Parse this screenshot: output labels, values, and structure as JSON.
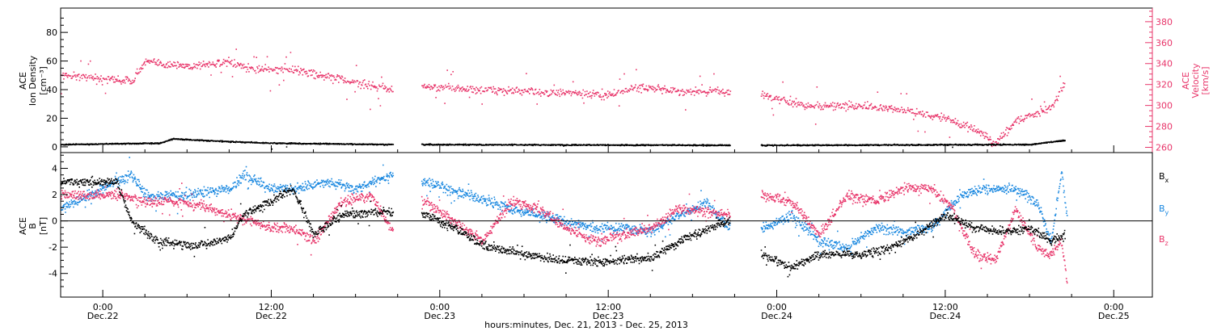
{
  "chart_data": [
    {
      "type": "scatter",
      "panel": "top",
      "ylabel_left": [
        "ACE",
        "Ion Density",
        "[cm⁻³]"
      ],
      "ylabel_right": [
        "ACE",
        "Velocity",
        "[km/s]"
      ],
      "ylim_left": [
        -4,
        97
      ],
      "ylim_right": [
        255,
        393
      ],
      "left_ticks": [
        0,
        20,
        40,
        60,
        80
      ],
      "right_ticks": [
        260,
        280,
        300,
        320,
        340,
        360,
        380
      ],
      "data_gaps": [
        [
          "2013-12-22T20:40",
          "2013-12-22T22:40"
        ],
        [
          "2013-12-23T20:40",
          "2013-12-23T22:50"
        ]
      ],
      "series": [
        {
          "axis": "right",
          "color": "#e8356a",
          "style": "dots",
          "points": [
            [
              "2013-12-21T21:00",
              330
            ],
            [
              "2013-12-22T00:00",
              326
            ],
            [
              "2013-12-22T02:00",
              324
            ],
            [
              "2013-12-22T03:00",
              342
            ],
            [
              "2013-12-22T06:00",
              338
            ],
            [
              "2013-12-22T09:00",
              342
            ],
            [
              "2013-12-22T10:00",
              336
            ],
            [
              "2013-12-22T14:00",
              334
            ],
            [
              "2013-12-22T16:00",
              328
            ],
            [
              "2013-12-22T18:00",
              322
            ],
            [
              "2013-12-22T20:30",
              316
            ],
            [
              "2013-12-22T23:00",
              318
            ],
            [
              "2013-12-23T02:00",
              316
            ],
            [
              "2013-12-23T06:00",
              314
            ],
            [
              "2013-12-23T09:00",
              312
            ],
            [
              "2013-12-23T12:00",
              310
            ],
            [
              "2013-12-23T14:00",
              318
            ],
            [
              "2013-12-23T17:00",
              314
            ],
            [
              "2013-12-23T20:30",
              314
            ],
            [
              "2013-12-23T23:00",
              310
            ],
            [
              "2013-12-24T02:00",
              300
            ],
            [
              "2013-12-24T06:00",
              300
            ],
            [
              "2013-12-24T09:00",
              296
            ],
            [
              "2013-12-24T12:00",
              288
            ],
            [
              "2013-12-24T14:00",
              278
            ],
            [
              "2013-12-24T15:30",
              264
            ],
            [
              "2013-12-24T17:00",
              286
            ],
            [
              "2013-12-24T19:30",
              298
            ],
            [
              "2013-12-24T20:30",
              322
            ]
          ]
        },
        {
          "axis": "left",
          "color": "#000000",
          "style": "dots",
          "points": [
            [
              "2013-12-21T21:00",
              2
            ],
            [
              "2013-12-22T04:00",
              3
            ],
            [
              "2013-12-22T05:00",
              6
            ],
            [
              "2013-12-22T09:00",
              4
            ],
            [
              "2013-12-22T12:00",
              3
            ],
            [
              "2013-12-22T20:30",
              2
            ],
            [
              "2013-12-22T23:00",
              2
            ],
            [
              "2013-12-23T20:30",
              1.5
            ],
            [
              "2013-12-23T23:00",
              1.5
            ],
            [
              "2013-12-24T18:00",
              2
            ],
            [
              "2013-12-24T20:30",
              5
            ]
          ]
        }
      ]
    },
    {
      "type": "scatter",
      "panel": "bottom",
      "ylabel_left": [
        "ACE",
        "B",
        "[nT]"
      ],
      "ylim": [
        -5.8,
        5.2
      ],
      "ticks": [
        -4,
        -2,
        0,
        2,
        4
      ],
      "zero_line": true,
      "legend_position": "right",
      "series": [
        {
          "name": "Bx",
          "color": "#000000",
          "style": "dots",
          "points": [
            [
              "2013-12-21T21:00",
              3
            ],
            [
              "2013-12-22T01:00",
              3
            ],
            [
              "2013-12-22T02:00",
              0
            ],
            [
              "2013-12-22T04:00",
              -1.6
            ],
            [
              "2013-12-22T07:00",
              -1.8
            ],
            [
              "2013-12-22T09:00",
              -1.2
            ],
            [
              "2013-12-22T10:00",
              0.5
            ],
            [
              "2013-12-22T12:00",
              1.5
            ],
            [
              "2013-12-22T13:30",
              2.5
            ],
            [
              "2013-12-22T15:00",
              -1
            ],
            [
              "2013-12-22T17:00",
              0.5
            ],
            [
              "2013-12-22T20:30",
              0.8
            ],
            [
              "2013-12-22T23:00",
              0.5
            ],
            [
              "2013-12-23T01:00",
              -0.5
            ],
            [
              "2013-12-23T03:00",
              -1.8
            ],
            [
              "2013-12-23T06:00",
              -2.5
            ],
            [
              "2013-12-23T09:00",
              -3
            ],
            [
              "2013-12-23T12:00",
              -3
            ],
            [
              "2013-12-23T15:00",
              -2.8
            ],
            [
              "2013-12-23T17:00",
              -1.5
            ],
            [
              "2013-12-23T20:30",
              0
            ],
            [
              "2013-12-23T23:00",
              -2.5
            ],
            [
              "2013-12-24T01:00",
              -3.5
            ],
            [
              "2013-12-24T03:00",
              -2.5
            ],
            [
              "2013-12-24T06:00",
              -2.5
            ],
            [
              "2013-12-24T08:00",
              -2
            ],
            [
              "2013-12-24T10:00",
              -1
            ],
            [
              "2013-12-24T12:00",
              0.5
            ],
            [
              "2013-12-24T14:00",
              -0.5
            ],
            [
              "2013-12-24T16:00",
              -0.8
            ],
            [
              "2013-12-24T18:00",
              -0.5
            ],
            [
              "2013-12-24T19:30",
              -1.5
            ],
            [
              "2013-12-24T20:30",
              -1
            ]
          ]
        },
        {
          "name": "By",
          "color": "#1a88e0",
          "style": "dots",
          "points": [
            [
              "2013-12-21T21:00",
              1
            ],
            [
              "2013-12-22T01:00",
              3
            ],
            [
              "2013-12-22T02:00",
              3.6
            ],
            [
              "2013-12-22T03:00",
              2
            ],
            [
              "2013-12-22T06:00",
              2
            ],
            [
              "2013-12-22T09:00",
              2.5
            ],
            [
              "2013-12-22T10:00",
              3.5
            ],
            [
              "2013-12-22T12:00",
              2.5
            ],
            [
              "2013-12-22T14:00",
              2.5
            ],
            [
              "2013-12-22T16:00",
              3
            ],
            [
              "2013-12-22T18:00",
              2.5
            ],
            [
              "2013-12-22T20:30",
              3.5
            ],
            [
              "2013-12-22T23:00",
              3
            ],
            [
              "2013-12-23T02:00",
              2
            ],
            [
              "2013-12-23T05:00",
              1
            ],
            [
              "2013-12-23T07:00",
              0.5
            ],
            [
              "2013-12-23T09:00",
              0
            ],
            [
              "2013-12-23T11:00",
              -0.5
            ],
            [
              "2013-12-23T13:00",
              -0.5
            ],
            [
              "2013-12-23T15:00",
              -0.8
            ],
            [
              "2013-12-23T17:00",
              0.5
            ],
            [
              "2013-12-23T19:00",
              1.5
            ],
            [
              "2013-12-23T20:30",
              -0.5
            ],
            [
              "2013-12-23T23:00",
              -0.5
            ],
            [
              "2013-12-24T01:00",
              0.5
            ],
            [
              "2013-12-24T03:00",
              -1.5
            ],
            [
              "2013-12-24T05:00",
              -2
            ],
            [
              "2013-12-24T07:00",
              -0.5
            ],
            [
              "2013-12-24T09:00",
              -0.8
            ],
            [
              "2013-12-24T11:00",
              -0.5
            ],
            [
              "2013-12-24T13:00",
              2
            ],
            [
              "2013-12-24T15:00",
              2.5
            ],
            [
              "2013-12-24T17:00",
              2.5
            ],
            [
              "2013-12-24T18:30",
              1.5
            ],
            [
              "2013-12-24T19:30",
              -1.5
            ],
            [
              "2013-12-24T20:15",
              3.8
            ],
            [
              "2013-12-24T20:40",
              0
            ]
          ]
        },
        {
          "name": "Bz",
          "color": "#e8356a",
          "style": "dots",
          "points": [
            [
              "2013-12-21T21:00",
              2
            ],
            [
              "2013-12-22T01:00",
              2
            ],
            [
              "2013-12-22T03:00",
              1.5
            ],
            [
              "2013-12-22T05:00",
              1.5
            ],
            [
              "2013-12-22T07:00",
              1.2
            ],
            [
              "2013-12-22T09:00",
              0.5
            ],
            [
              "2013-12-22T10:30",
              0
            ],
            [
              "2013-12-22T12:00",
              -0.5
            ],
            [
              "2013-12-22T13:30",
              -0.5
            ],
            [
              "2013-12-22T15:00",
              -1.5
            ],
            [
              "2013-12-22T17:00",
              1.5
            ],
            [
              "2013-12-22T19:00",
              2
            ],
            [
              "2013-12-22T20:30",
              -0.5
            ],
            [
              "2013-12-22T23:00",
              1.5
            ],
            [
              "2013-12-23T01:00",
              0
            ],
            [
              "2013-12-23T03:00",
              -1.5
            ],
            [
              "2013-12-23T05:00",
              1.5
            ],
            [
              "2013-12-23T07:00",
              1
            ],
            [
              "2013-12-23T09:00",
              -0.5
            ],
            [
              "2013-12-23T11:00",
              -1.5
            ],
            [
              "2013-12-23T13:00",
              -1
            ],
            [
              "2013-12-23T15:00",
              -0.5
            ],
            [
              "2013-12-23T17:00",
              1
            ],
            [
              "2013-12-23T20:30",
              0.5
            ],
            [
              "2013-12-23T23:00",
              2
            ],
            [
              "2013-12-24T01:00",
              1.5
            ],
            [
              "2013-12-24T03:00",
              -1
            ],
            [
              "2013-12-24T05:00",
              2
            ],
            [
              "2013-12-24T07:00",
              1.5
            ],
            [
              "2013-12-24T09:00",
              2.5
            ],
            [
              "2013-12-24T11:00",
              2.5
            ],
            [
              "2013-12-24T12:30",
              1
            ],
            [
              "2013-12-24T14:00",
              -2.5
            ],
            [
              "2013-12-24T15:30",
              -3
            ],
            [
              "2013-12-24T17:00",
              1
            ],
            [
              "2013-12-24T18:30",
              -2
            ],
            [
              "2013-12-24T19:30",
              -2.5
            ],
            [
              "2013-12-24T20:15",
              -1.5
            ],
            [
              "2013-12-24T20:40",
              -5
            ]
          ]
        }
      ]
    }
  ],
  "x_axis": {
    "range": [
      "2013-12-21T21:00",
      "2013-12-25T02:45"
    ],
    "ticks": [
      {
        "time": "2013-12-22T00:00",
        "label": "0:00",
        "date": "Dec.22"
      },
      {
        "time": "2013-12-22T12:00",
        "label": "12:00",
        "date": "Dec.22"
      },
      {
        "time": "2013-12-23T00:00",
        "label": "0:00",
        "date": "Dec.23"
      },
      {
        "time": "2013-12-23T12:00",
        "label": "12:00",
        "date": "Dec.23"
      },
      {
        "time": "2013-12-24T00:00",
        "label": "0:00",
        "date": "Dec.24"
      },
      {
        "time": "2013-12-24T12:00",
        "label": "12:00",
        "date": "Dec.24"
      },
      {
        "time": "2013-12-25T00:00",
        "label": "0:00",
        "date": "Dec.25"
      }
    ],
    "title": "hours:minutes, Dec. 21, 2013 - Dec. 25, 2013"
  },
  "labels": {
    "top_left": [
      "ACE",
      "Ion Density",
      "[cm⁻³]"
    ],
    "top_right": [
      "ACE",
      "Velocity",
      "[km/s]"
    ],
    "bottom_left": [
      "ACE",
      "B",
      "[nT]"
    ],
    "legend": [
      {
        "base": "B",
        "sub": "x",
        "color": "#000000"
      },
      {
        "base": "B",
        "sub": "y",
        "color": "#1a88e0"
      },
      {
        "base": "B",
        "sub": "z",
        "color": "#e8356a"
      }
    ]
  },
  "colors": {
    "velocity": "#e8356a",
    "density": "#000000",
    "bx": "#000000",
    "by": "#1a88e0",
    "bz": "#e8356a",
    "axis": "#000000"
  }
}
